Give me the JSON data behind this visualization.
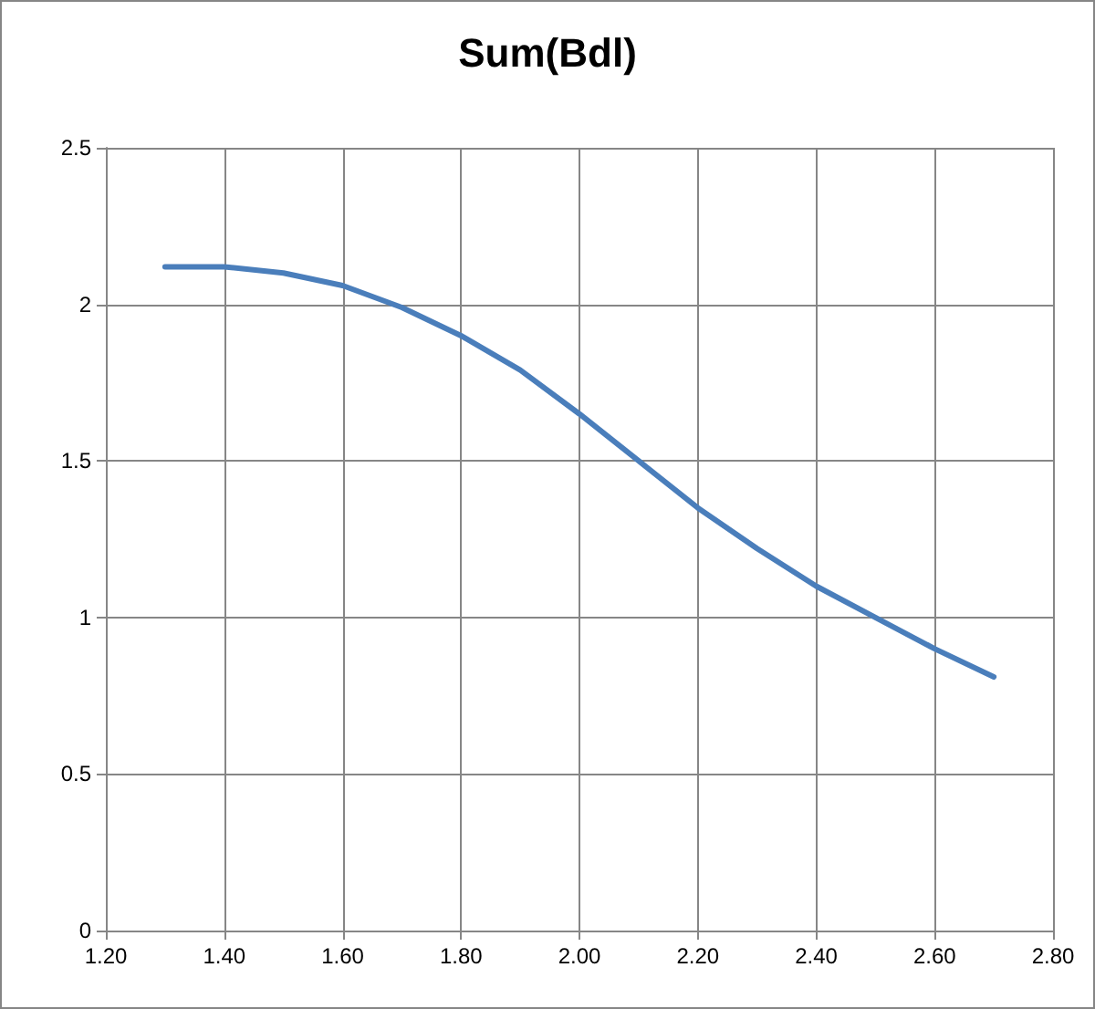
{
  "chart_data": {
    "type": "line",
    "title": "Sum(Bdl)",
    "x": [
      1.3,
      1.4,
      1.5,
      1.6,
      1.7,
      1.8,
      1.9,
      2.0,
      2.1,
      2.2,
      2.3,
      2.4,
      2.5,
      2.6,
      2.7
    ],
    "series": [
      {
        "color": "#4a7ebb",
        "values": [
          2.12,
          2.12,
          2.1,
          2.06,
          1.99,
          1.9,
          1.79,
          1.65,
          1.5,
          1.35,
          1.22,
          1.1,
          1.0,
          0.9,
          0.81
        ]
      }
    ],
    "xlim": [
      1.2,
      2.8
    ],
    "xticks": [
      {
        "value": 1.2,
        "label": "1.20"
      },
      {
        "value": 1.4,
        "label": "1.40"
      },
      {
        "value": 1.6,
        "label": "1.60"
      },
      {
        "value": 1.8,
        "label": "1.80"
      },
      {
        "value": 2.0,
        "label": "2.00"
      },
      {
        "value": 2.2,
        "label": "2.20"
      },
      {
        "value": 2.4,
        "label": "2.40"
      },
      {
        "value": 2.6,
        "label": "2.60"
      },
      {
        "value": 2.8,
        "label": "2.80"
      }
    ],
    "ylim": [
      0,
      2.5
    ],
    "yticks": [
      0,
      0.5,
      1,
      1.5,
      2,
      2.5
    ],
    "grid": true,
    "marker": "none",
    "line_style": "solid"
  }
}
